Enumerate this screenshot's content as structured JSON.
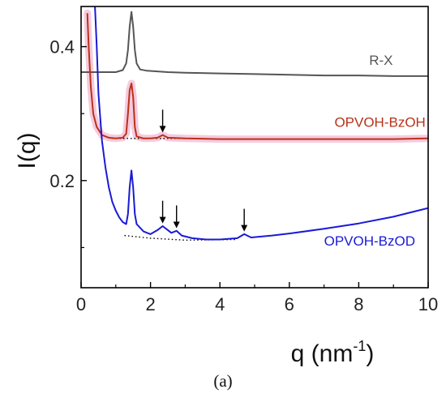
{
  "caption": "(a)",
  "chart_data": {
    "type": "line",
    "xlabel_base": "q (nm",
    "xlabel_sup": "-1",
    "xlabel_tail": ")",
    "ylabel": "I(q)",
    "xlim": [
      0,
      10
    ],
    "ylim": [
      0.04,
      0.46
    ],
    "xticks": [
      0,
      2,
      4,
      6,
      8,
      10
    ],
    "xtick_labels": [
      "0",
      "2",
      "4",
      "6",
      "8",
      "10"
    ],
    "yticks": [
      0.2,
      0.4
    ],
    "ytick_labels": [
      "0.2",
      "0.4"
    ],
    "grid": false,
    "colors": {
      "rx": "#555555",
      "bzoh": "#b8321a",
      "bzoh_band": "#f3b8d2",
      "bzod": "#1a1ad6",
      "baseline": "#000000"
    },
    "series": [
      {
        "name": "R-X",
        "points": [
          [
            0,
            0.362
          ],
          [
            0.5,
            0.362
          ],
          [
            1.0,
            0.362
          ],
          [
            1.2,
            0.365
          ],
          [
            1.3,
            0.375
          ],
          [
            1.35,
            0.395
          ],
          [
            1.4,
            0.43
          ],
          [
            1.45,
            0.452
          ],
          [
            1.5,
            0.43
          ],
          [
            1.55,
            0.395
          ],
          [
            1.6,
            0.375
          ],
          [
            1.7,
            0.366
          ],
          [
            1.9,
            0.364
          ],
          [
            2.5,
            0.362
          ],
          [
            3,
            0.361
          ],
          [
            4,
            0.36
          ],
          [
            5,
            0.359
          ],
          [
            6,
            0.358
          ],
          [
            7,
            0.357
          ],
          [
            8,
            0.357
          ],
          [
            9,
            0.356
          ],
          [
            10,
            0.356
          ]
        ]
      },
      {
        "name": "OPVOH-BzOH",
        "points": [
          [
            0.18,
            0.45
          ],
          [
            0.22,
            0.4
          ],
          [
            0.28,
            0.34
          ],
          [
            0.35,
            0.3
          ],
          [
            0.45,
            0.28
          ],
          [
            0.6,
            0.268
          ],
          [
            0.8,
            0.264
          ],
          [
            1.0,
            0.263
          ],
          [
            1.2,
            0.264
          ],
          [
            1.3,
            0.27
          ],
          [
            1.35,
            0.3
          ],
          [
            1.4,
            0.335
          ],
          [
            1.45,
            0.345
          ],
          [
            1.5,
            0.325
          ],
          [
            1.55,
            0.28
          ],
          [
            1.6,
            0.266
          ],
          [
            1.8,
            0.263
          ],
          [
            2.0,
            0.263
          ],
          [
            2.2,
            0.264
          ],
          [
            2.35,
            0.268
          ],
          [
            2.5,
            0.264
          ],
          [
            3,
            0.263
          ],
          [
            4,
            0.262
          ],
          [
            5,
            0.262
          ],
          [
            6,
            0.262
          ],
          [
            7,
            0.262
          ],
          [
            8,
            0.262
          ],
          [
            9,
            0.262
          ],
          [
            10,
            0.263
          ]
        ]
      },
      {
        "name": "OPVOH-BzOD",
        "points": [
          [
            0.4,
            0.46
          ],
          [
            0.45,
            0.4
          ],
          [
            0.5,
            0.33
          ],
          [
            0.6,
            0.26
          ],
          [
            0.7,
            0.22
          ],
          [
            0.8,
            0.19
          ],
          [
            0.9,
            0.168
          ],
          [
            1.0,
            0.155
          ],
          [
            1.1,
            0.145
          ],
          [
            1.2,
            0.138
          ],
          [
            1.3,
            0.135
          ],
          [
            1.35,
            0.15
          ],
          [
            1.4,
            0.19
          ],
          [
            1.45,
            0.215
          ],
          [
            1.5,
            0.19
          ],
          [
            1.55,
            0.15
          ],
          [
            1.6,
            0.135
          ],
          [
            1.8,
            0.124
          ],
          [
            2.0,
            0.12
          ],
          [
            2.2,
            0.126
          ],
          [
            2.35,
            0.132
          ],
          [
            2.5,
            0.126
          ],
          [
            2.6,
            0.122
          ],
          [
            2.75,
            0.125
          ],
          [
            2.9,
            0.118
          ],
          [
            3.2,
            0.114
          ],
          [
            3.6,
            0.112
          ],
          [
            4,
            0.112
          ],
          [
            4.5,
            0.114
          ],
          [
            4.7,
            0.12
          ],
          [
            4.9,
            0.115
          ],
          [
            5.5,
            0.118
          ],
          [
            6,
            0.121
          ],
          [
            7,
            0.128
          ],
          [
            8,
            0.136
          ],
          [
            9,
            0.146
          ],
          [
            10,
            0.159
          ]
        ]
      }
    ],
    "baselines": [
      {
        "of": "OPVOH-BzOH",
        "points": [
          [
            0.9,
            0.263
          ],
          [
            3.0,
            0.263
          ]
        ]
      },
      {
        "of": "OPVOH-BzOD",
        "points": [
          [
            1.25,
            0.118
          ],
          [
            2.0,
            0.114
          ],
          [
            3.0,
            0.111
          ],
          [
            4.5,
            0.112
          ]
        ]
      }
    ],
    "annotations": [
      {
        "type": "arrow",
        "of": "OPVOH-BzOH",
        "x": 2.35,
        "y": 0.272
      },
      {
        "type": "arrow",
        "of": "OPVOH-BzOD",
        "x": 2.35,
        "y": 0.136
      },
      {
        "type": "arrow",
        "of": "OPVOH-BzOD",
        "x": 2.75,
        "y": 0.129
      },
      {
        "type": "arrow",
        "of": "OPVOH-BzOD",
        "x": 4.7,
        "y": 0.124
      }
    ],
    "series_labels": [
      {
        "text": "R-X",
        "x": 8.3,
        "y": 0.373
      },
      {
        "text": "OPVOH-BzOH",
        "x": 7.3,
        "y": 0.28
      },
      {
        "text": "OPVOH-BzOD",
        "x": 7.0,
        "y": 0.103
      }
    ]
  }
}
